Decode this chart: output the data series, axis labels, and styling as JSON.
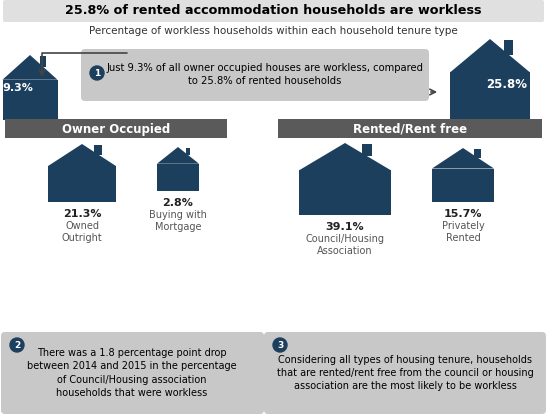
{
  "title": "25.8% of rented accommodation households are workless",
  "subtitle": "Percentage of workless households within each household tenure type",
  "callout1_line1": "Just 9.3% of all owner occupied houses are workless, compared",
  "callout1_line2": "to 25.8% of rented households",
  "left_label": "Owner Occupied",
  "right_label": "Rented/Rent free",
  "left_pct": "9.3%",
  "right_pct": "25.8%",
  "sub_items": [
    {
      "pct": "21.3%",
      "label": "Owned\nOutright"
    },
    {
      "pct": "2.8%",
      "label": "Buying with\nMortgage"
    },
    {
      "pct": "39.1%",
      "label": "Council/Housing\nAssociation"
    },
    {
      "pct": "15.7%",
      "label": "Privately\nRented"
    }
  ],
  "note2": "There was a 1.8 percentage point drop\nbetween 2014 and 2015 in the percentage\nof Council/Housing association\nhouseholds that were workless",
  "note3": "Considering all types of housing tenure, households\nthat are rented/rent free from the council or housing\nassociation are the most likely to be workless",
  "house_color": "#1d3f5e",
  "bar_color": "#5a5a5a",
  "bg_color": "#ffffff",
  "callout_bg": "#c8c8c8",
  "note_bg": "#c8c8c8",
  "title_bg": "#e0e0e0"
}
